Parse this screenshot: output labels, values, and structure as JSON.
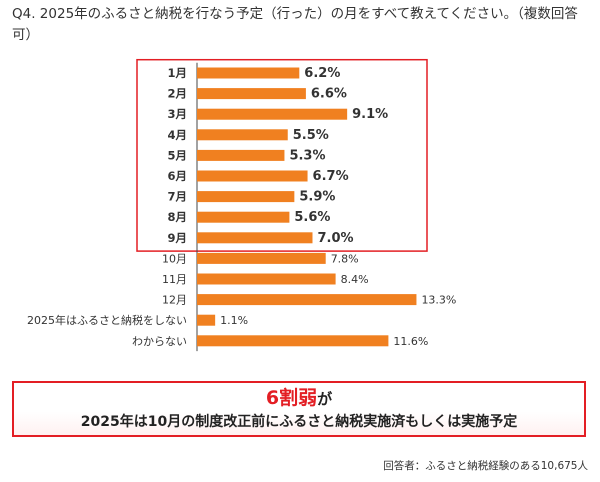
{
  "question": "Q4. 2025年のふるさと納税を行なう予定（行った）の月をすべて教えてください。（複数回答可）",
  "colors": {
    "bar": "#f08020",
    "highlight_border": "#e31e24",
    "callout_text": "#e31e24"
  },
  "chart_data": {
    "type": "bar",
    "orientation": "horizontal",
    "unit": "%",
    "categories": [
      "1月",
      "2月",
      "3月",
      "4月",
      "5月",
      "6月",
      "7月",
      "8月",
      "9月",
      "10月",
      "11月",
      "12月",
      "2025年はふるさと納税をしない",
      "わからない"
    ],
    "values": [
      6.2,
      6.6,
      9.1,
      5.5,
      5.3,
      6.7,
      5.9,
      5.6,
      7.0,
      7.8,
      8.4,
      13.3,
      1.1,
      11.6
    ],
    "labels": [
      "6.2%",
      "6.6%",
      "9.1%",
      "5.5%",
      "5.3%",
      "6.7%",
      "5.9%",
      "5.6%",
      "7.0%",
      "7.8%",
      "8.4%",
      "13.3%",
      "1.1%",
      "11.6%"
    ],
    "highlighted_range": [
      "1月",
      "9月"
    ],
    "grid": false,
    "legend": "none"
  },
  "callout": {
    "highlight": "6割弱",
    "tail": "が",
    "line2": "2025年は10月の制度改正前にふるさと納税実施済もしくは実施予定"
  },
  "footnote": "回答者：ふるさと納税経験のある10,675人"
}
